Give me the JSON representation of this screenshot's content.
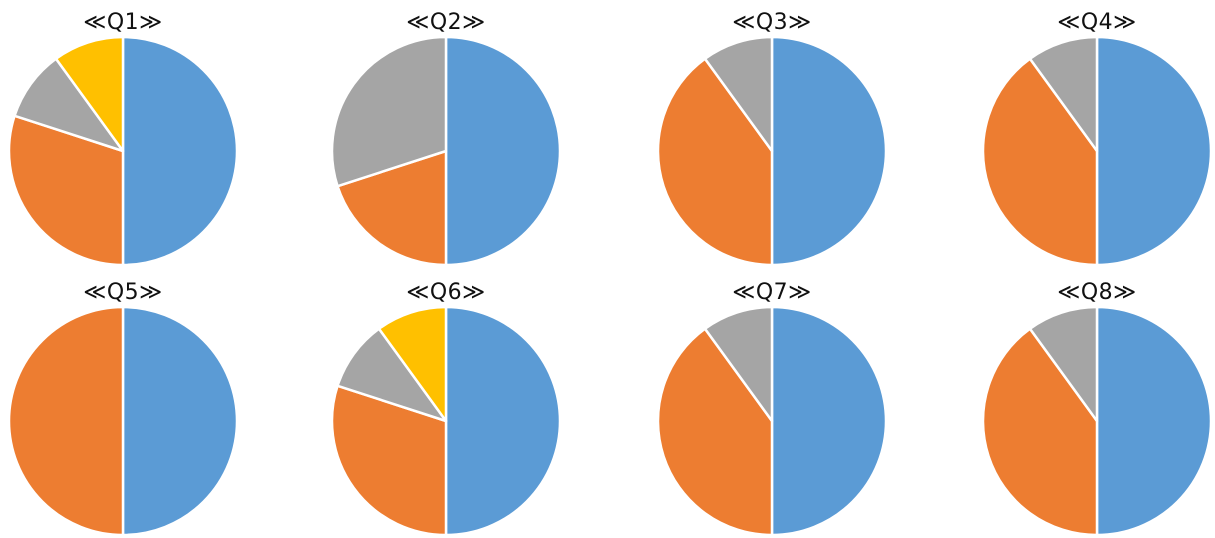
{
  "colors": {
    "series_1": "#5B9BD5",
    "series_2": "#ED7D31",
    "series_3": "#A5A5A5",
    "series_4": "#FFC000"
  },
  "chart_data": [
    {
      "type": "pie",
      "title": "≪Q1≫",
      "values": [
        50,
        30,
        10,
        10
      ]
    },
    {
      "type": "pie",
      "title": "≪Q2≫",
      "values": [
        50,
        20,
        30
      ]
    },
    {
      "type": "pie",
      "title": "≪Q3≫",
      "values": [
        50,
        40,
        10
      ]
    },
    {
      "type": "pie",
      "title": "≪Q4≫",
      "values": [
        50,
        40,
        10
      ]
    },
    {
      "type": "pie",
      "title": "≪Q5≫",
      "values": [
        50,
        50
      ]
    },
    {
      "type": "pie",
      "title": "≪Q6≫",
      "values": [
        50,
        30,
        10,
        10
      ]
    },
    {
      "type": "pie",
      "title": "≪Q7≫",
      "values": [
        50,
        40,
        10
      ]
    },
    {
      "type": "pie",
      "title": "≪Q8≫",
      "values": [
        50,
        40,
        10
      ]
    }
  ]
}
